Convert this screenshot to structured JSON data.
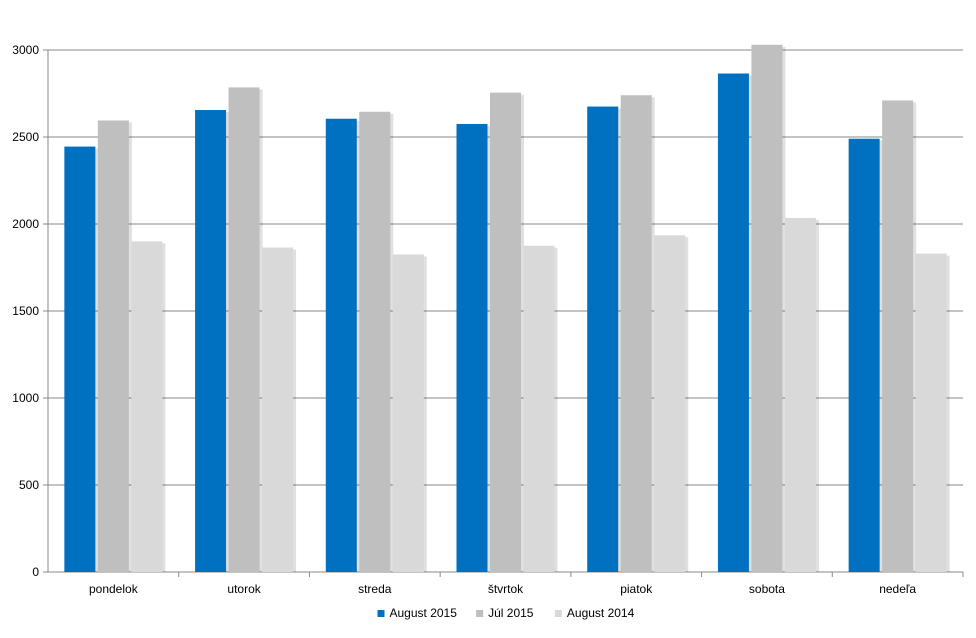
{
  "chart_data": {
    "type": "bar",
    "title": "",
    "xlabel": "",
    "ylabel": "",
    "categories": [
      "pondelok",
      "utorok",
      "streda",
      "štvrtok",
      "piatok",
      "sobota",
      "nedeľa"
    ],
    "series": [
      {
        "name": "August 2015",
        "color": "#0070c0",
        "values": [
          2445,
          2655,
          2605,
          2575,
          2675,
          2865,
          2490
        ]
      },
      {
        "name": "Júl 2015",
        "color": "#bfbfbf",
        "values": [
          2595,
          2785,
          2645,
          2755,
          2740,
          3030,
          2710
        ]
      },
      {
        "name": "August 2014",
        "color": "#d9d9d9",
        "values": [
          1900,
          1865,
          1825,
          1875,
          1935,
          2035,
          1830
        ]
      }
    ],
    "ylim": [
      0,
      3000
    ],
    "yticks": [
      0,
      500,
      1000,
      1500,
      2000,
      2500,
      3000
    ],
    "grid": true,
    "legend_position": "bottom"
  }
}
